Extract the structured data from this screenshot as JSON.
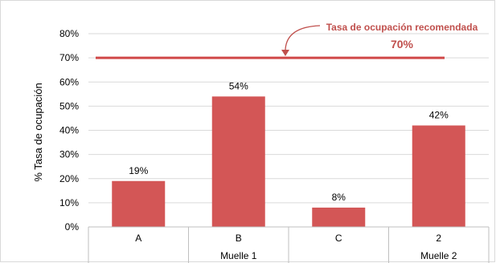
{
  "chart_data": {
    "type": "bar",
    "categories": [
      "A",
      "B",
      "C",
      "2"
    ],
    "groups": [
      {
        "label": "Muelle 1",
        "categories": [
          "A",
          "B",
          "C"
        ]
      },
      {
        "label": "Muelle 2",
        "categories": [
          "2"
        ]
      }
    ],
    "values": [
      19,
      54,
      8,
      42
    ],
    "data_labels": [
      "19%",
      "54%",
      "8%",
      "42%"
    ],
    "ylabel": "% Tasa de ocupación",
    "xlabel": "",
    "ylim": [
      0,
      80
    ],
    "yticks": [
      "0%",
      "10%",
      "20%",
      "30%",
      "40%",
      "50%",
      "60%",
      "70%",
      "80%"
    ],
    "grid": true,
    "reference_line": {
      "value": 70,
      "label": "Tasa de ocupación  recomendada",
      "value_label": "70%"
    },
    "colors": {
      "bar": "#d35656",
      "reference_line": "#d04848",
      "annotation": "#c0504d",
      "grid": "#d9d9d9",
      "axis": "#bfbfbf"
    }
  }
}
